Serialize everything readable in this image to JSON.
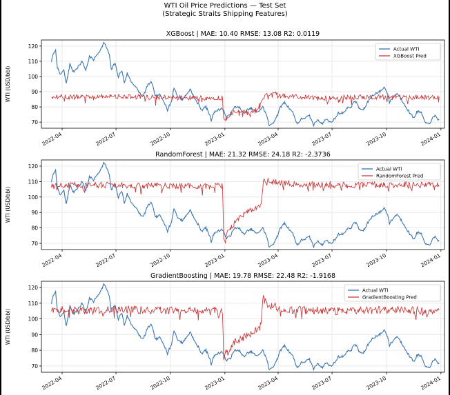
{
  "suptitle": {
    "line1": "WTI Oil Price Predictions — Test Set",
    "line2": "(Strategic Straits Shipping Features)"
  },
  "colors": {
    "actual": "#3a74b0",
    "pred": "#d0393b",
    "grid": "#e3e3e3"
  },
  "chart_data": [
    {
      "type": "line",
      "title": "XGBoost  |  MAE: 10.40  RMSE: 13.08  R2: 0.0119",
      "ylabel": "WTI (USD/bbl)",
      "ylim": [
        66,
        124
      ],
      "yticks": [
        70,
        80,
        90,
        100,
        110,
        120
      ],
      "xlim": [
        "2022-02-25",
        "2024-01-07"
      ],
      "xticks": [
        "2022-04",
        "2022-07",
        "2022-10",
        "2023-01",
        "2023-04",
        "2023-07",
        "2023-10",
        "2024-01"
      ],
      "grid": true,
      "legend": "top-right",
      "series": [
        {
          "name": "Actual WTI",
          "key": "actual"
        },
        {
          "name": "XGBoost Pred",
          "key": "pred"
        }
      ],
      "actual_points": [
        [
          "2022-03-14",
          110
        ],
        [
          "2022-03-18",
          116
        ],
        [
          "2022-03-21",
          117
        ],
        [
          "2022-03-24",
          106
        ],
        [
          "2022-03-28",
          101
        ],
        [
          "2022-04-04",
          104
        ],
        [
          "2022-04-08",
          95
        ],
        [
          "2022-04-14",
          108
        ],
        [
          "2022-04-20",
          103
        ],
        [
          "2022-04-27",
          106
        ],
        [
          "2022-05-05",
          110
        ],
        [
          "2022-05-11",
          104
        ],
        [
          "2022-05-17",
          113
        ],
        [
          "2022-05-24",
          111
        ],
        [
          "2022-05-31",
          115
        ],
        [
          "2022-06-07",
          119
        ],
        [
          "2022-06-10",
          122
        ],
        [
          "2022-06-14",
          120
        ],
        [
          "2022-06-20",
          114
        ],
        [
          "2022-06-23",
          104
        ],
        [
          "2022-06-29",
          109
        ],
        [
          "2022-07-05",
          100
        ],
        [
          "2022-07-11",
          104
        ],
        [
          "2022-07-15",
          96
        ],
        [
          "2022-07-20",
          102
        ],
        [
          "2022-07-26",
          97
        ],
        [
          "2022-08-02",
          94
        ],
        [
          "2022-08-08",
          90
        ],
        [
          "2022-08-16",
          87
        ],
        [
          "2022-08-22",
          93
        ],
        [
          "2022-08-29",
          97
        ],
        [
          "2022-09-06",
          87
        ],
        [
          "2022-09-13",
          88
        ],
        [
          "2022-09-20",
          84
        ],
        [
          "2022-09-26",
          78
        ],
        [
          "2022-10-03",
          84
        ],
        [
          "2022-10-07",
          93
        ],
        [
          "2022-10-14",
          86
        ],
        [
          "2022-10-21",
          85
        ],
        [
          "2022-10-28",
          88
        ],
        [
          "2022-11-04",
          92
        ],
        [
          "2022-11-10",
          86
        ],
        [
          "2022-11-17",
          82
        ],
        [
          "2022-11-23",
          78
        ],
        [
          "2022-11-30",
          80
        ],
        [
          "2022-12-06",
          75
        ],
        [
          "2022-12-09",
          71
        ],
        [
          "2022-12-14",
          77
        ],
        [
          "2022-12-21",
          78
        ],
        [
          "2022-12-28",
          79
        ],
        [
          "2023-01-04",
          73
        ],
        [
          "2023-01-10",
          75
        ],
        [
          "2023-01-18",
          80
        ],
        [
          "2023-01-25",
          80
        ],
        [
          "2023-02-01",
          76
        ],
        [
          "2023-02-08",
          78
        ],
        [
          "2023-02-15",
          79
        ],
        [
          "2023-02-24",
          76
        ],
        [
          "2023-03-06",
          80
        ],
        [
          "2023-03-13",
          74
        ],
        [
          "2023-03-17",
          67
        ],
        [
          "2023-03-24",
          70
        ],
        [
          "2023-03-31",
          75
        ],
        [
          "2023-04-05",
          80
        ],
        [
          "2023-04-12",
          83
        ],
        [
          "2023-04-18",
          80
        ],
        [
          "2023-04-25",
          77
        ],
        [
          "2023-05-03",
          69
        ],
        [
          "2023-05-10",
          72
        ],
        [
          "2023-05-17",
          73
        ],
        [
          "2023-05-24",
          74
        ],
        [
          "2023-05-31",
          68
        ],
        [
          "2023-06-07",
          72
        ],
        [
          "2023-06-14",
          69
        ],
        [
          "2023-06-21",
          72
        ],
        [
          "2023-06-28",
          70
        ],
        [
          "2023-07-05",
          72
        ],
        [
          "2023-07-12",
          76
        ],
        [
          "2023-07-19",
          76
        ],
        [
          "2023-07-26",
          79
        ],
        [
          "2023-08-02",
          80
        ],
        [
          "2023-08-09",
          84
        ],
        [
          "2023-08-16",
          79
        ],
        [
          "2023-08-23",
          78
        ],
        [
          "2023-08-30",
          83
        ],
        [
          "2023-09-06",
          87
        ],
        [
          "2023-09-13",
          89
        ],
        [
          "2023-09-20",
          90
        ],
        [
          "2023-09-27",
          93
        ],
        [
          "2023-10-03",
          89
        ],
        [
          "2023-10-06",
          83
        ],
        [
          "2023-10-12",
          86
        ],
        [
          "2023-10-19",
          89
        ],
        [
          "2023-10-26",
          85
        ],
        [
          "2023-11-02",
          81
        ],
        [
          "2023-11-09",
          76
        ],
        [
          "2023-11-16",
          73
        ],
        [
          "2023-11-22",
          77
        ],
        [
          "2023-11-29",
          76
        ],
        [
          "2023-12-06",
          69
        ],
        [
          "2023-12-12",
          69
        ],
        [
          "2023-12-19",
          73
        ],
        [
          "2023-12-22",
          74
        ],
        [
          "2023-12-27",
          72
        ],
        [
          "2023-12-29",
          72
        ]
      ],
      "pred_points": [
        [
          "2022-03-14",
          87
        ],
        [
          "2022-04-15",
          86.5
        ],
        [
          "2022-06-15",
          87
        ],
        [
          "2022-08-15",
          86.5
        ],
        [
          "2022-10-15",
          86
        ],
        [
          "2022-12-28",
          86
        ],
        [
          "2022-12-30",
          71
        ],
        [
          "2023-01-15",
          77
        ],
        [
          "2023-02-05",
          76.5
        ],
        [
          "2023-02-25",
          78
        ],
        [
          "2023-03-01",
          82
        ],
        [
          "2023-03-10",
          88
        ],
        [
          "2023-03-20",
          89
        ],
        [
          "2023-04-10",
          87
        ],
        [
          "2023-06-15",
          86
        ],
        [
          "2023-09-15",
          86.5
        ],
        [
          "2023-12-29",
          86
        ]
      ],
      "pred_noise": 1.6,
      "pred_spikes": -3
    },
    {
      "type": "line",
      "title": "RandomForest  |  MAE: 21.32  RMSE: 24.18  R2: -2.3736",
      "ylabel": "WTI (USD/bbl)",
      "ylim": [
        66,
        124
      ],
      "yticks": [
        70,
        80,
        90,
        100,
        110,
        120
      ],
      "xlim": [
        "2022-02-25",
        "2024-01-07"
      ],
      "xticks": [
        "2022-04",
        "2022-07",
        "2022-10",
        "2023-01",
        "2023-04",
        "2023-07",
        "2023-10",
        "2024-01"
      ],
      "grid": true,
      "legend": "top-right",
      "series": [
        {
          "name": "Actual WTI",
          "key": "actual"
        },
        {
          "name": "RandomForest Pred",
          "key": "pred"
        }
      ],
      "actual_ref": 0,
      "pred_points": [
        [
          "2022-03-14",
          107
        ],
        [
          "2022-05-15",
          108
        ],
        [
          "2022-07-15",
          107.5
        ],
        [
          "2022-10-15",
          107
        ],
        [
          "2022-12-28",
          107
        ],
        [
          "2022-12-30",
          74
        ],
        [
          "2023-01-10",
          80
        ],
        [
          "2023-01-25",
          86
        ],
        [
          "2023-02-10",
          91
        ],
        [
          "2023-03-01",
          93
        ],
        [
          "2023-03-08",
          112
        ],
        [
          "2023-03-20",
          110
        ],
        [
          "2023-05-15",
          108
        ],
        [
          "2023-09-15",
          108
        ],
        [
          "2023-12-29",
          108
        ]
      ],
      "pred_noise": 2.0,
      "pred_spikes": -3
    },
    {
      "type": "line",
      "title": "GradientBoosting  |  MAE: 19.78  RMSE: 22.48  R2: -1.9168",
      "ylabel": "WTI (USD/bbl)",
      "ylim": [
        66,
        124
      ],
      "yticks": [
        70,
        80,
        90,
        100,
        110,
        120
      ],
      "xlim": [
        "2022-02-25",
        "2024-01-07"
      ],
      "xticks": [
        "2022-04",
        "2022-07",
        "2022-10",
        "2023-01",
        "2023-04",
        "2023-07",
        "2023-10",
        "2024-01"
      ],
      "grid": true,
      "legend": "top-right",
      "series": [
        {
          "name": "Actual WTI",
          "key": "actual"
        },
        {
          "name": "GradientBoosting Pred",
          "key": "pred"
        }
      ],
      "actual_ref": 0,
      "pred_points": [
        [
          "2022-03-14",
          106
        ],
        [
          "2022-05-15",
          105
        ],
        [
          "2022-07-15",
          106
        ],
        [
          "2022-10-15",
          105
        ],
        [
          "2022-12-28",
          105
        ],
        [
          "2022-12-30",
          76
        ],
        [
          "2023-01-15",
          84
        ],
        [
          "2023-02-01",
          88
        ],
        [
          "2023-02-20",
          92
        ],
        [
          "2023-03-01",
          93
        ],
        [
          "2023-03-06",
          114
        ],
        [
          "2023-03-12",
          109
        ],
        [
          "2023-04-15",
          106
        ],
        [
          "2023-07-15",
          105
        ],
        [
          "2023-10-15",
          106
        ],
        [
          "2023-12-29",
          105
        ]
      ],
      "pred_noise": 2.5,
      "pred_spikes": -3
    }
  ]
}
